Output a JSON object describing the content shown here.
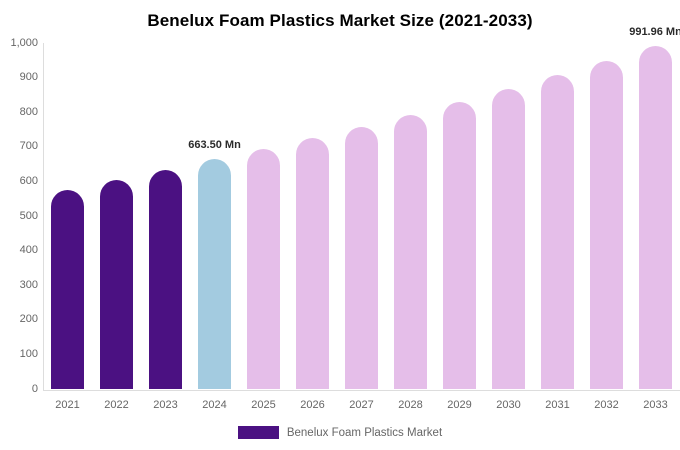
{
  "chart_data": {
    "type": "bar",
    "title": "Benelux Foam Plastics Market Size (2021-2033)",
    "categories": [
      "2021",
      "2022",
      "2023",
      "2024",
      "2025",
      "2026",
      "2027",
      "2028",
      "2029",
      "2030",
      "2031",
      "2032",
      "2033"
    ],
    "values": [
      575,
      604,
      633,
      663.5,
      693.8,
      725.5,
      758.6,
      793.3,
      829.5,
      867.4,
      907.0,
      948.5,
      991.96
    ],
    "unit": "Mn",
    "xlabel": "",
    "ylabel": "",
    "ylim": [
      0,
      1000
    ],
    "y_tick_values": [
      1000,
      900,
      800,
      700,
      600,
      500,
      400,
      300,
      200,
      100,
      0
    ],
    "y_tick_labels": [
      "1,000",
      "900",
      "800",
      "700",
      "600",
      "500",
      "400",
      "300",
      "200",
      "100",
      "0"
    ],
    "grid": false,
    "legend_position": "bottom-center",
    "bar_colors": [
      "#4B1182",
      "#4B1182",
      "#4B1182",
      "#A3CBE0",
      "#E5BEE9",
      "#E5BEE9",
      "#E5BEE9",
      "#E5BEE9",
      "#E5BEE9",
      "#E5BEE9",
      "#E5BEE9",
      "#E5BEE9",
      "#E5BEE9"
    ],
    "annotations": [
      {
        "category": "2024",
        "index": 3,
        "text": "663.50 Mn"
      },
      {
        "category": "2033",
        "index": 12,
        "text": "991.96 Mn"
      }
    ],
    "legend": {
      "label": "Benelux Foam Plastics Market",
      "swatch_color": "#4B1182"
    }
  },
  "colors": {
    "historical_purple": "#4B1182",
    "highlight_blue": "#A3CBE0",
    "forecast_pink": "#E5BEE9",
    "axis_text": "#666666",
    "axis_line": "#dddddd",
    "data_label_text": "#2b2b2b",
    "title_text": "#000000",
    "background": "#ffffff"
  }
}
